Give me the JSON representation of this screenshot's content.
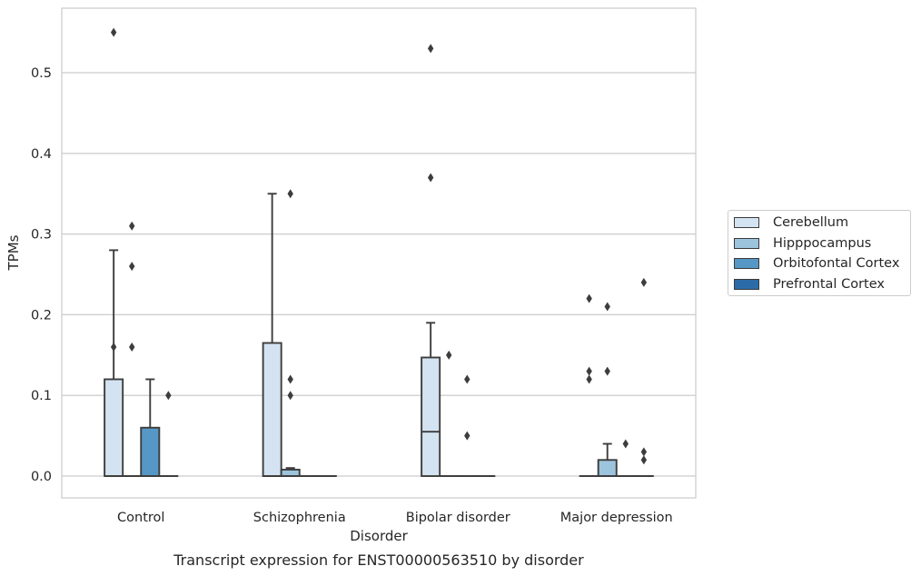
{
  "chart_data": {
    "type": "box",
    "title": "Transcript expression for ENST00000563510 by disorder",
    "xlabel": "Disorder",
    "ylabel": "TPMs",
    "ylim": [
      -0.027,
      0.58
    ],
    "yticks": [
      0.0,
      0.1,
      0.2,
      0.3,
      0.4,
      0.5
    ],
    "ytick_labels": [
      "0.0",
      "0.1",
      "0.2",
      "0.3",
      "0.4",
      "0.5"
    ],
    "grid": "horizontal",
    "legend_placement": "outside-right",
    "categories": [
      "Control",
      "Schizophrenia",
      "Bipolar disorder",
      "Major depression"
    ],
    "series": [
      {
        "name": "Cerebellum",
        "color": "#d4e3f1",
        "boxes": [
          {
            "q1": 0.0,
            "median": 0.0,
            "q3": 0.12,
            "whisker_low": 0.0,
            "whisker_high": 0.28,
            "outliers": [
              0.55,
              0.16
            ]
          },
          {
            "q1": 0.0,
            "median": 0.0,
            "q3": 0.165,
            "whisker_low": 0.0,
            "whisker_high": 0.35,
            "outliers": []
          },
          {
            "q1": 0.0,
            "median": 0.055,
            "q3": 0.147,
            "whisker_low": 0.0,
            "whisker_high": 0.19,
            "outliers": [
              0.53,
              0.37
            ]
          },
          {
            "q1": 0.0,
            "median": 0.0,
            "q3": 0.0,
            "whisker_low": 0.0,
            "whisker_high": 0.0,
            "outliers": [
              0.22,
              0.13,
              0.12
            ]
          }
        ]
      },
      {
        "name": "Hipppocampus",
        "color": "#9dc4dd",
        "boxes": [
          {
            "q1": 0.0,
            "median": 0.0,
            "q3": 0.0,
            "whisker_low": 0.0,
            "whisker_high": 0.0,
            "outliers": [
              0.31,
              0.26,
              0.16
            ]
          },
          {
            "q1": 0.0,
            "median": 0.0,
            "q3": 0.008,
            "whisker_low": 0.0,
            "whisker_high": 0.01,
            "outliers": [
              0.35,
              0.12,
              0.1
            ]
          },
          {
            "q1": 0.0,
            "median": 0.0,
            "q3": 0.0,
            "whisker_low": 0.0,
            "whisker_high": 0.0,
            "outliers": [
              0.15
            ]
          },
          {
            "q1": 0.0,
            "median": 0.0,
            "q3": 0.02,
            "whisker_low": 0.0,
            "whisker_high": 0.04,
            "outliers": [
              0.21,
              0.13
            ]
          }
        ]
      },
      {
        "name": "Orbitofontal Cortex",
        "color": "#5598c5",
        "boxes": [
          {
            "q1": 0.0,
            "median": 0.0,
            "q3": 0.06,
            "whisker_low": 0.0,
            "whisker_high": 0.12,
            "outliers": []
          },
          {
            "q1": 0.0,
            "median": 0.0,
            "q3": 0.0,
            "whisker_low": 0.0,
            "whisker_high": 0.0,
            "outliers": []
          },
          {
            "q1": 0.0,
            "median": 0.0,
            "q3": 0.0,
            "whisker_low": 0.0,
            "whisker_high": 0.0,
            "outliers": [
              0.12,
              0.05
            ]
          },
          {
            "q1": 0.0,
            "median": 0.0,
            "q3": 0.0,
            "whisker_low": 0.0,
            "whisker_high": 0.0,
            "outliers": [
              0.04
            ]
          }
        ]
      },
      {
        "name": "Prefrontal Cortex",
        "color": "#2b6ca8",
        "boxes": [
          {
            "q1": 0.0,
            "median": 0.0,
            "q3": 0.0,
            "whisker_low": 0.0,
            "whisker_high": 0.0,
            "outliers": [
              0.1
            ]
          },
          {
            "q1": 0.0,
            "median": 0.0,
            "q3": 0.0,
            "whisker_low": 0.0,
            "whisker_high": 0.0,
            "outliers": []
          },
          {
            "q1": 0.0,
            "median": 0.0,
            "q3": 0.0,
            "whisker_low": 0.0,
            "whisker_high": 0.0,
            "outliers": []
          },
          {
            "q1": 0.0,
            "median": 0.0,
            "q3": 0.0,
            "whisker_low": 0.0,
            "whisker_high": 0.0,
            "outliers": [
              0.24,
              0.03,
              0.02
            ]
          }
        ]
      }
    ]
  }
}
